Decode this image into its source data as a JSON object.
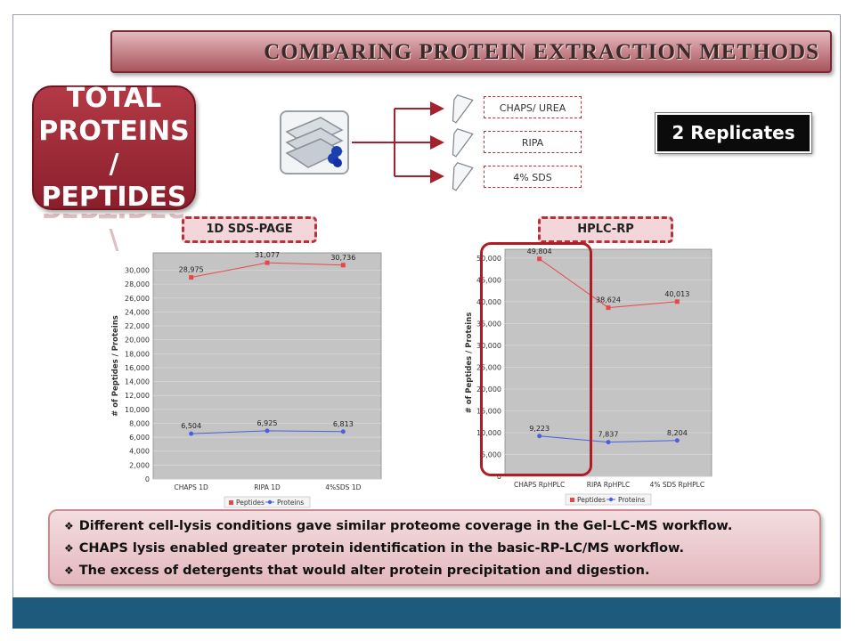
{
  "slide": {
    "title": "COMPARING PROTEIN EXTRACTION METHODS",
    "big_label_lines": [
      "TOTAL",
      "PROTEINS",
      "/ PEPTIDES"
    ],
    "methods": [
      "CHAPS/ UREA",
      "RIPA",
      "4% SDS"
    ],
    "replicates": "2 Replicates",
    "panel_left_label": "1D SDS-PAGE",
    "panel_right_label": "HPLC-RP",
    "notes": [
      "Different cell-lysis conditions gave similar proteome coverage in the Gel-LC-MS  workflow.",
      "CHAPS lysis enabled greater protein identification in the basic-RP-LC/MS  workflow.",
      "The excess of detergents that would alter protein precipitation and digestion."
    ],
    "colors": {
      "accent": "#8b1e2b",
      "footer": "#1e5a7c",
      "peptides": "#e8474a",
      "proteins": "#4a5fe0",
      "plot_bg": "#c4c4c4"
    }
  },
  "chart_data": [
    {
      "type": "line",
      "categories": [
        "CHAPS 1D",
        "RIPA 1D",
        "4%SDS 1D"
      ],
      "series": [
        {
          "name": "Peptides",
          "values": [
            28975,
            31077,
            30736
          ],
          "labels": [
            "28,975",
            "31,077",
            "30,736"
          ]
        },
        {
          "name": "Proteins",
          "values": [
            6504,
            6925,
            6813
          ],
          "labels": [
            "6,504",
            "6,925",
            "6,813"
          ]
        }
      ],
      "ylabel": "# of Peptides / Proteins",
      "ylim": [
        0,
        32500
      ],
      "yticks": [
        0,
        2000,
        4000,
        6000,
        8000,
        10000,
        12000,
        14000,
        16000,
        18000,
        20000,
        22000,
        24000,
        26000,
        28000,
        30000
      ],
      "ytick_labels": [
        "0",
        "2,000",
        "4,000",
        "6,000",
        "8,000",
        "10,000",
        "12,000",
        "14,000",
        "16,000",
        "18,000",
        "20,000",
        "22,000",
        "24,000",
        "26,000",
        "28,000",
        "30,000"
      ],
      "grid": true,
      "legend": "bottom"
    },
    {
      "type": "line",
      "categories": [
        "CHAPS RpHPLC",
        "RIPA RpHPLC",
        "4% SDS RpHPLC"
      ],
      "series": [
        {
          "name": "Peptides",
          "values": [
            49804,
            38624,
            40013
          ],
          "labels": [
            "49,804",
            "38,624",
            "40,013"
          ]
        },
        {
          "name": "Proteins",
          "values": [
            9223,
            7837,
            8204
          ],
          "labels": [
            "9,223",
            "7,837",
            "8,204"
          ]
        }
      ],
      "ylabel": "# of Peptides / Proteins",
      "ylim": [
        0,
        52000
      ],
      "yticks": [
        0,
        5000,
        10000,
        15000,
        20000,
        25000,
        30000,
        35000,
        40000,
        45000,
        50000
      ],
      "ytick_labels": [
        "0",
        "5,000",
        "10,000",
        "15,000",
        "20,000",
        "25,000",
        "30,000",
        "35,000",
        "40,000",
        "45,000",
        "50,000"
      ],
      "grid": true,
      "legend": "bottom"
    }
  ]
}
